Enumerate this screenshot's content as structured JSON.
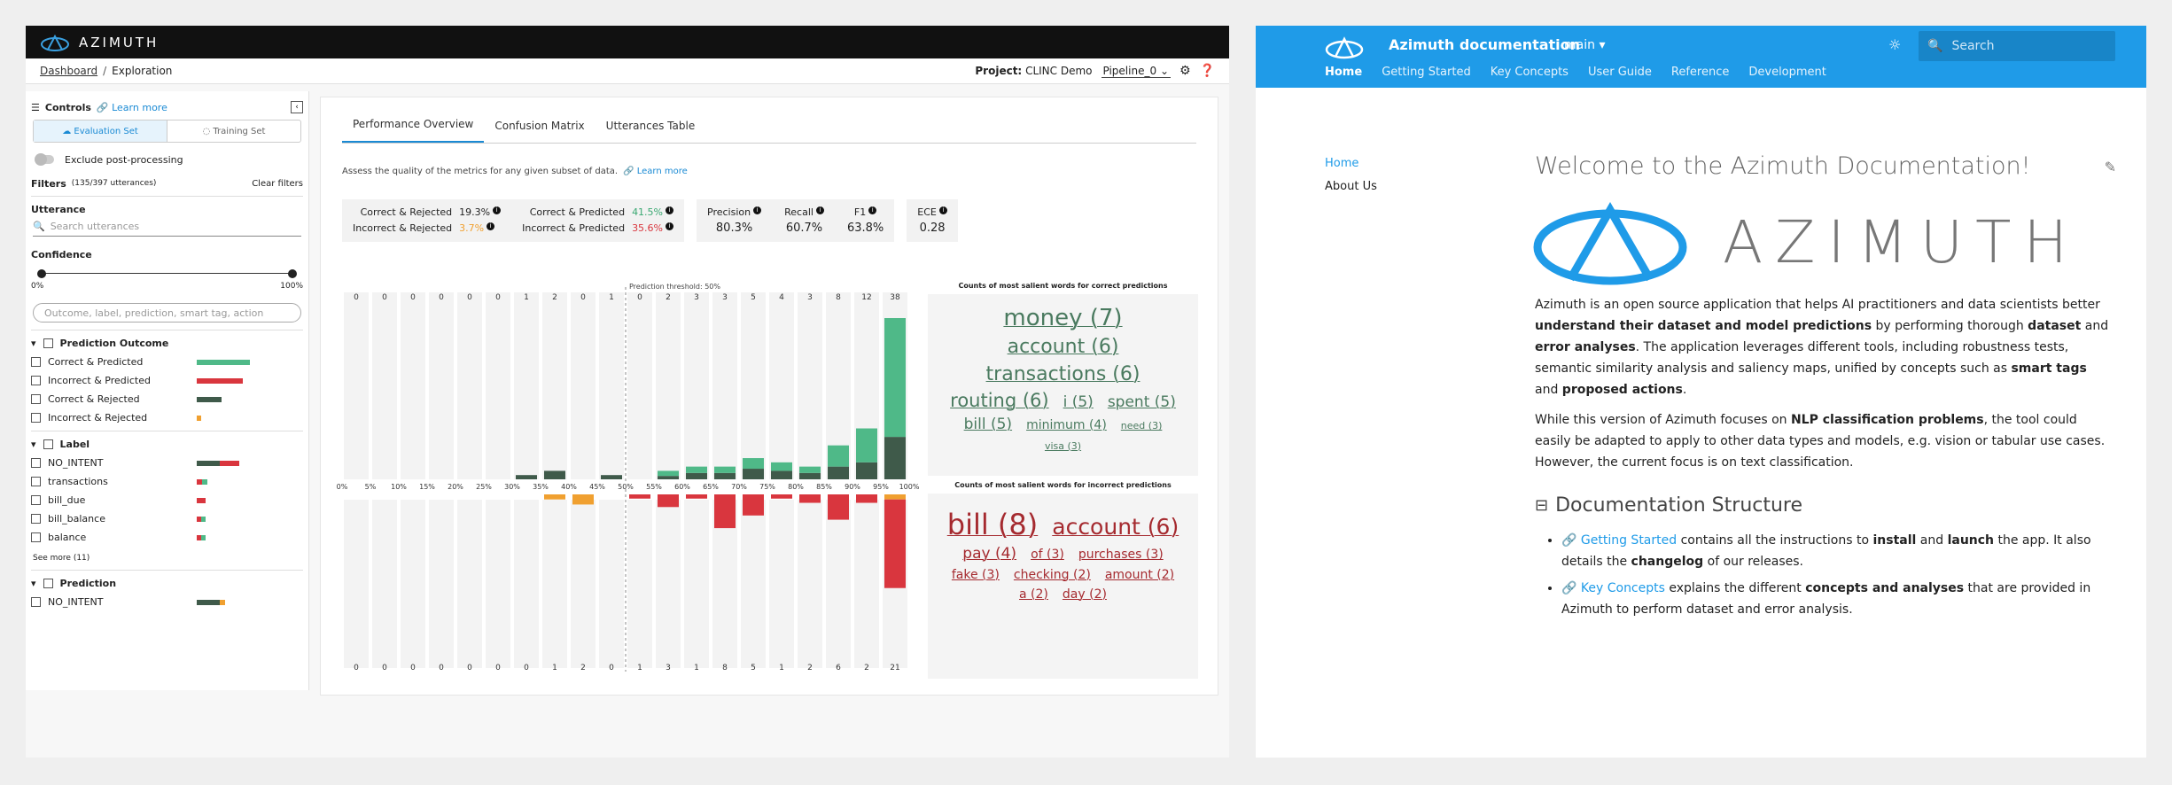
{
  "app": {
    "brand": "AZIMUTH",
    "breadcrumb": [
      "Dashboard",
      "/",
      "Exploration"
    ],
    "project_label": "Project:",
    "project_value": "CLINC Demo",
    "pipeline": "Pipeline_0"
  },
  "controls": {
    "title": "Controls",
    "learn_more": "Learn more",
    "eval_tab": "Evaluation Set",
    "train_tab": "Training Set",
    "exclude_label": "Exclude post-processing",
    "filters_title": "Filters",
    "filters_count": "(135/397 utterances)",
    "clear_filters": "Clear filters",
    "utterance_title": "Utterance",
    "search_placeholder": "Search utterances",
    "confidence_title": "Confidence",
    "conf_min": "0%",
    "conf_max": "100%",
    "filter_placeholder": "Outcome, label, prediction, smart tag, action",
    "outcome_title": "Prediction Outcome",
    "outcomes": [
      {
        "label": "Correct & Predicted",
        "segs": [
          [
            1.0,
            "#4fb988"
          ]
        ],
        "w": 60
      },
      {
        "label": "Incorrect & Predicted",
        "segs": [
          [
            1.0,
            "#d9363e"
          ]
        ],
        "w": 52
      },
      {
        "label": "Correct & Rejected",
        "segs": [
          [
            1.0,
            "#3f5a4a"
          ]
        ],
        "w": 28
      },
      {
        "label": "Incorrect & Rejected",
        "segs": [
          [
            1.0,
            "#f0a030"
          ]
        ],
        "w": 5
      }
    ],
    "label_title": "Label",
    "labels": [
      {
        "label": "NO_INTENT",
        "segs": [
          [
            0.55,
            "#3f5a4a"
          ],
          [
            0.45,
            "#d9363e"
          ]
        ],
        "w": 48
      },
      {
        "label": "transactions",
        "segs": [
          [
            0.5,
            "#d9363e"
          ],
          [
            0.5,
            "#4fb988"
          ]
        ],
        "w": 12
      },
      {
        "label": "bill_due",
        "segs": [
          [
            1.0,
            "#d9363e"
          ]
        ],
        "w": 10
      },
      {
        "label": "bill_balance",
        "segs": [
          [
            0.5,
            "#d9363e"
          ],
          [
            0.5,
            "#4fb988"
          ]
        ],
        "w": 10
      },
      {
        "label": "balance",
        "segs": [
          [
            0.5,
            "#d9363e"
          ],
          [
            0.5,
            "#4fb988"
          ]
        ],
        "w": 10
      }
    ],
    "see_more": "See more (11)",
    "prediction_title": "Prediction",
    "predictions": [
      {
        "label": "NO_INTENT",
        "segs": [
          [
            0.8,
            "#3f5a4a"
          ],
          [
            0.2,
            "#f0a030"
          ]
        ],
        "w": 32
      }
    ]
  },
  "main": {
    "tabs": [
      "Performance Overview",
      "Confusion Matrix",
      "Utterances Table"
    ],
    "description": "Assess the quality of the metrics for any given subset of data.",
    "learn_more": "Learn more",
    "metrics": {
      "correct_rejected": {
        "label": "Correct & Rejected",
        "value": "19.3%"
      },
      "incorrect_rejected": {
        "label": "Incorrect & Rejected",
        "value": "3.7%"
      },
      "correct_predicted": {
        "label": "Correct & Predicted",
        "value": "41.5%"
      },
      "incorrect_predicted": {
        "label": "Incorrect & Predicted",
        "value": "35.6%"
      },
      "precision": {
        "label": "Precision",
        "value": "80.3%"
      },
      "recall": {
        "label": "Recall",
        "value": "60.7%"
      },
      "f1": {
        "label": "F1",
        "value": "63.8%"
      },
      "ece": {
        "label": "ECE",
        "value": "0.28"
      }
    },
    "correct_title": "Counts of most salient words for correct predictions",
    "incorrect_title": "Counts of most salient words for incorrect predictions"
  },
  "chart_data": {
    "type": "bar",
    "threshold_label": "Prediction threshold: 50%",
    "x_ticks": [
      "0%",
      "5%",
      "10%",
      "15%",
      "20%",
      "25%",
      "30%",
      "35%",
      "40%",
      "45%",
      "50%",
      "55%",
      "60%",
      "65%",
      "70%",
      "75%",
      "80%",
      "85%",
      "90%",
      "95%",
      "100%"
    ],
    "correct_counts": [
      0,
      0,
      0,
      0,
      0,
      0,
      1,
      2,
      0,
      1,
      0,
      2,
      3,
      3,
      5,
      4,
      3,
      8,
      12,
      38
    ],
    "incorrect_counts": [
      0,
      0,
      0,
      0,
      0,
      0,
      0,
      1,
      2,
      0,
      1,
      3,
      1,
      8,
      5,
      1,
      2,
      6,
      2,
      21
    ],
    "series": [
      {
        "name": "Correct & Predicted",
        "values": [
          0,
          0,
          0,
          0,
          0,
          0,
          0,
          0,
          0,
          0,
          0,
          1.2,
          1.5,
          1.5,
          2.5,
          2,
          1.5,
          5,
          8,
          28
        ]
      },
      {
        "name": "Correct & Rejected",
        "values": [
          0,
          0,
          0,
          0,
          0,
          0,
          1,
          2,
          0,
          1,
          0,
          0.8,
          1.5,
          1.5,
          2.5,
          2,
          1.5,
          3,
          4,
          10
        ]
      },
      {
        "name": "Incorrect & Predicted",
        "values": [
          0,
          0,
          0,
          0,
          0,
          0,
          0,
          0,
          0,
          0,
          1,
          3,
          1,
          8,
          5,
          1,
          2,
          6,
          2,
          21
        ]
      },
      {
        "name": "Incorrect & Rejected",
        "values": [
          0,
          0,
          0,
          0,
          0,
          0,
          0,
          1,
          2,
          0,
          0,
          0,
          0,
          0,
          0,
          0,
          0,
          0,
          0,
          1
        ]
      }
    ]
  },
  "wordcloud_correct": [
    {
      "w": "money (7)",
      "s": 26
    },
    {
      "w": "account (6)",
      "s": 22
    },
    {
      "w": "transactions (6)",
      "s": 22
    },
    {
      "w": "routing (6)",
      "s": 21
    },
    {
      "w": "i (5)",
      "s": 17
    },
    {
      "w": "spent (5)",
      "s": 17
    },
    {
      "w": "bill (5)",
      "s": 17
    },
    {
      "w": "minimum (4)",
      "s": 14
    },
    {
      "w": "need (3)",
      "s": 11
    },
    {
      "w": "visa (3)",
      "s": 11
    }
  ],
  "wordcloud_incorrect": [
    {
      "w": "bill (8)",
      "s": 32
    },
    {
      "w": "account (6)",
      "s": 25
    },
    {
      "w": "pay (4)",
      "s": 17
    },
    {
      "w": "of (3)",
      "s": 14
    },
    {
      "w": "purchases (3)",
      "s": 14
    },
    {
      "w": "fake (3)",
      "s": 14
    },
    {
      "w": "checking (2)",
      "s": 14
    },
    {
      "w": "amount (2)",
      "s": 14
    },
    {
      "w": "a (2)",
      "s": 14
    },
    {
      "w": "day (2)",
      "s": 14
    }
  ],
  "docs": {
    "title": "Azimuth documentation",
    "branch": "main",
    "search_placeholder": "Search",
    "nav": [
      "Home",
      "Getting Started",
      "Key Concepts",
      "User Guide",
      "Reference",
      "Development"
    ],
    "side": [
      "Home",
      "About Us"
    ],
    "heading": "Welcome to the Azimuth Documentation!",
    "logo_word": "AZIMUTH",
    "p1_a": "Azimuth is an open source application that helps AI practitioners and data scientists better ",
    "p1_b": "understand their dataset and model predictions",
    "p1_c": " by performing thorough ",
    "p1_d": "dataset",
    "p1_e": " and ",
    "p1_f": "error analyses",
    "p1_g": ". The application leverages different tools, including robustness tests, semantic similarity analysis and saliency maps, unified by concepts such as ",
    "p1_h": "smart tags",
    "p1_i": " and ",
    "p1_j": "proposed actions",
    "p1_k": ".",
    "p2_a": "While this version of Azimuth focuses on ",
    "p2_b": "NLP classification problems",
    "p2_c": ", the tool could easily be adapted to apply to other data types and models, e.g. vision or tabular use cases. However, the current focus is on text classification.",
    "h2": "Documentation Structure",
    "li1_link": "Getting Started",
    "li1_a": " contains all the instructions to ",
    "li1_b": "install",
    "li1_c": " and ",
    "li1_d": "launch",
    "li1_e": " the app. It also details the ",
    "li1_f": "changelog",
    "li1_g": " of our releases.",
    "li2_link": "Key Concepts",
    "li2_a": " explains the different ",
    "li2_b": "concepts and analyses",
    "li2_c": " that are provided in Azimuth to perform dataset and error analysis."
  }
}
